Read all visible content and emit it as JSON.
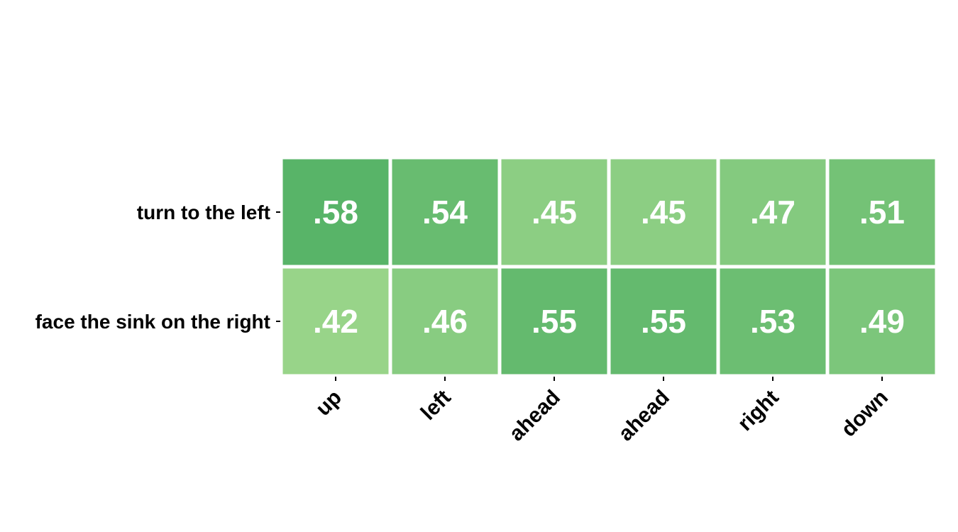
{
  "chart_data": {
    "type": "heatmap",
    "rows": [
      "turn to the left",
      "face the sink on the right"
    ],
    "columns": [
      "up",
      "left",
      "ahead",
      "ahead",
      "right",
      "down"
    ],
    "values": [
      [
        0.58,
        0.54,
        0.45,
        0.45,
        0.47,
        0.51
      ],
      [
        0.42,
        0.46,
        0.55,
        0.55,
        0.53,
        0.49
      ]
    ],
    "value_labels": [
      [
        ".58",
        ".54",
        ".45",
        ".45",
        ".47",
        ".51"
      ],
      [
        ".42",
        ".46",
        ".55",
        ".55",
        ".53",
        ".49"
      ]
    ],
    "colormap": {
      "low": "#98d489",
      "high": "#58b468"
    },
    "grid_color": "#ffffff",
    "label_color": "#ffffff",
    "tick_label_rotation": -45
  }
}
